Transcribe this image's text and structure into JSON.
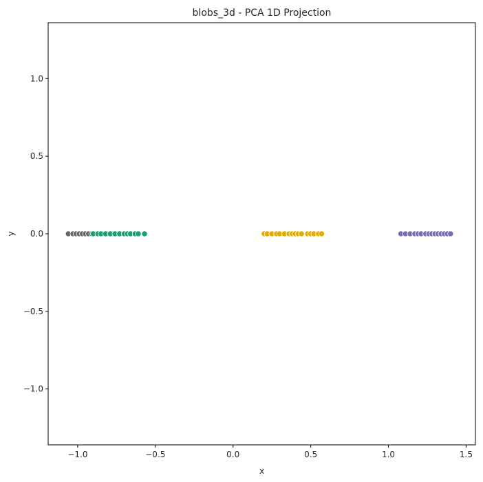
{
  "chart_data": {
    "type": "scatter",
    "title": "blobs_3d - PCA 1D Projection",
    "xlabel": "x",
    "ylabel": "y",
    "xlim": [
      -1.19,
      1.56
    ],
    "ylim": [
      -1.36,
      1.36
    ],
    "xticks": [
      -1.0,
      -0.5,
      0.0,
      0.5,
      1.0,
      1.5
    ],
    "xtick_labels": [
      "−1.0",
      "−0.5",
      "0.0",
      "0.5",
      "1.0",
      "1.5"
    ],
    "yticks": [
      1.0,
      0.5,
      0.0,
      -0.5,
      -1.0
    ],
    "ytick_labels": [
      "1.0",
      "0.5",
      "0.0",
      "−0.5",
      "−1.0"
    ],
    "grid": false,
    "legend": "none",
    "series": [
      {
        "color": "#666666",
        "x": [
          -1.06,
          -1.03,
          -1.01,
          -0.99,
          -0.97,
          -0.95,
          -0.93,
          -0.91,
          -0.89,
          -0.86,
          -0.84,
          -0.81,
          -0.78,
          -0.75,
          -0.72,
          -0.7
        ],
        "y": [
          0,
          0,
          0,
          0,
          0,
          0,
          0,
          0,
          0,
          0,
          0,
          0,
          0,
          0,
          0,
          0
        ]
      },
      {
        "color": "#1b9e77",
        "x": [
          -0.9,
          -0.87,
          -0.85,
          -0.82,
          -0.79,
          -0.76,
          -0.73,
          -0.7,
          -0.68,
          -0.66,
          -0.63,
          -0.61,
          -0.57
        ],
        "y": [
          0,
          0,
          0,
          0,
          0,
          0,
          0,
          0,
          0,
          0,
          0,
          0,
          0
        ]
      },
      {
        "color": "#e6ab02",
        "x": [
          0.2,
          0.22,
          0.25,
          0.28,
          0.3,
          0.33,
          0.36,
          0.38,
          0.4,
          0.42,
          0.44,
          0.48,
          0.5,
          0.52,
          0.55,
          0.57
        ],
        "y": [
          0,
          0,
          0,
          0,
          0,
          0,
          0,
          0,
          0,
          0,
          0,
          0,
          0,
          0,
          0,
          0
        ]
      },
      {
        "color": "#7570b3",
        "x": [
          1.08,
          1.11,
          1.14,
          1.17,
          1.19,
          1.21,
          1.24,
          1.26,
          1.28,
          1.3,
          1.32,
          1.34,
          1.36,
          1.38,
          1.4
        ],
        "y": [
          0,
          0,
          0,
          0,
          0,
          0,
          0,
          0,
          0,
          0,
          0,
          0,
          0,
          0,
          0
        ]
      }
    ]
  }
}
